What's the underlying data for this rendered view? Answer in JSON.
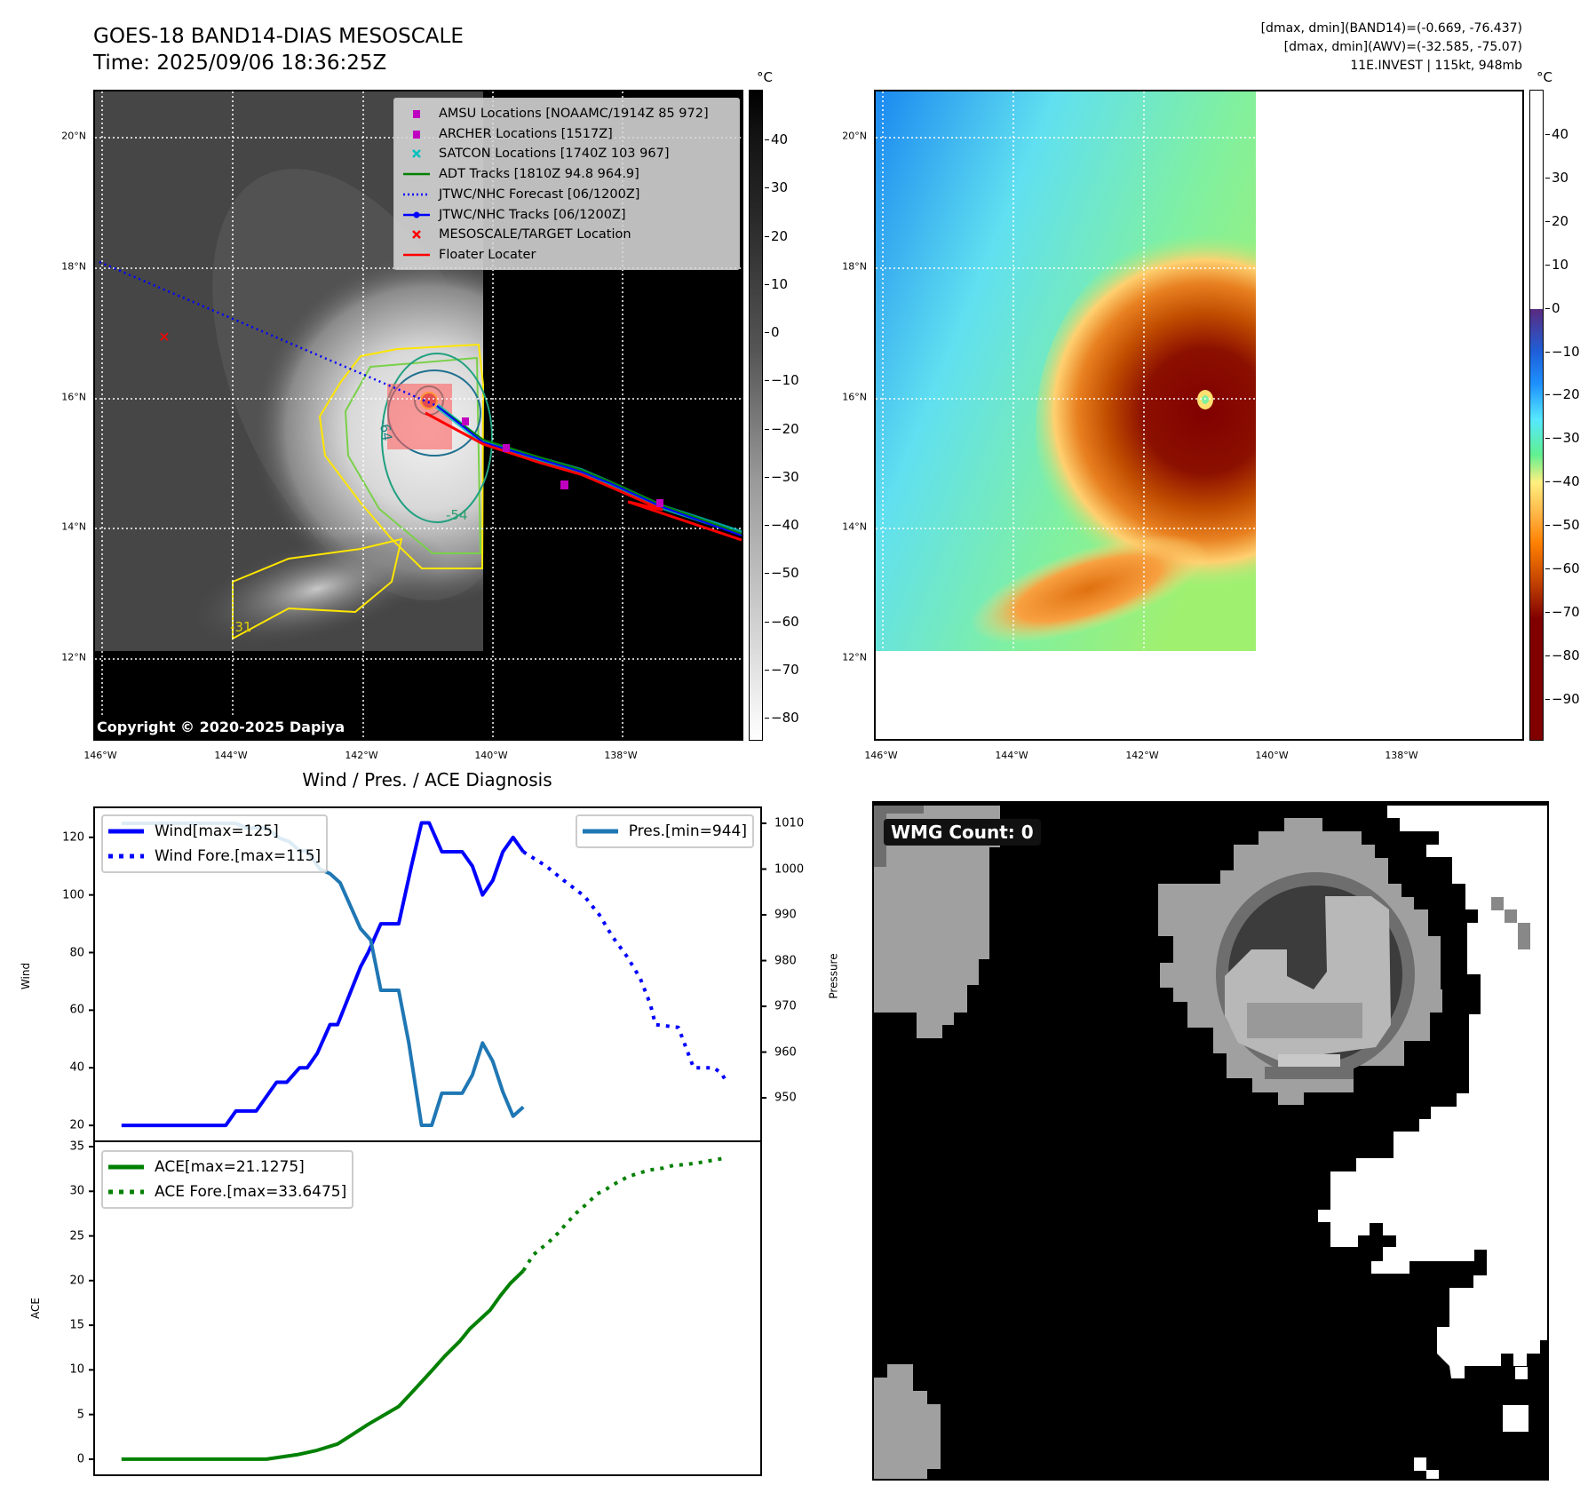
{
  "header": {
    "title": "GOES-18 BAND14-DIAS MESOSCALE",
    "time": "Time: 2025/09/06 18:36:25Z",
    "info_lines": [
      "[dmax, dmin](BAND14)=(-0.669, -76.437)",
      "[dmax, dmin](AWV)=(-32.585, -75.07)",
      "11E.INVEST | 115kt, 948mb"
    ]
  },
  "maps": {
    "lat_labels": [
      "20°N",
      "18°N",
      "16°N",
      "14°N",
      "12°N"
    ],
    "lon_labels": [
      "146°W",
      "144°W",
      "142°W",
      "140°W",
      "138°W"
    ],
    "unit": "°C",
    "ir_colorbar_ticks": [
      "40",
      "30",
      "20",
      "10",
      "0",
      "−10",
      "−20",
      "−30",
      "−40",
      "−50",
      "−60",
      "−70",
      "−80"
    ],
    "awv_colorbar_ticks": [
      "40",
      "30",
      "20",
      "10",
      "0",
      "−10",
      "−20",
      "−30",
      "−40",
      "−50",
      "−60",
      "−70",
      "−80",
      "−90"
    ],
    "contour_labels": [
      "-64",
      "-54",
      "-31"
    ],
    "copyright": "Copyright © 2020-2025 Dapiya",
    "legend": [
      {
        "label": "AMSU Locations [NOAAMC/1914Z 85 972]",
        "symbol": "square",
        "color": "#c000c0"
      },
      {
        "label": "ARCHER Locations [1517Z]",
        "symbol": "square",
        "color": "#c000c0"
      },
      {
        "label": "SATCON Locations [1740Z 103 967]",
        "symbol": "x",
        "color": "#00c0c0"
      },
      {
        "label": "ADT Tracks [1810Z 94.8 964.9]",
        "symbol": "line",
        "color": "#008000"
      },
      {
        "label": "JTWC/NHC Forecast [06/1200Z]",
        "symbol": "dotted",
        "color": "#0000ff"
      },
      {
        "label": "JTWC/NHC Tracks [06/1200Z]",
        "symbol": "line-dot",
        "color": "#0000ff"
      },
      {
        "label": "MESOSCALE/TARGET Location",
        "symbol": "x",
        "color": "#ff0000"
      },
      {
        "label": "Floater Locater",
        "symbol": "line",
        "color": "#ff0000"
      }
    ]
  },
  "wmg": {
    "label": "WMG Count: 0"
  },
  "chart_data": [
    {
      "type": "line",
      "title": "Wind / Pres. / ACE Diagnosis",
      "ylabel": "Wind",
      "y2label": "Pressure",
      "xlim": [
        -5.2,
        125.6
      ],
      "ylim": [
        14.8,
        130.1
      ],
      "y2lim": [
        940.7,
        1013.3
      ],
      "yticks": [
        20,
        40,
        60,
        80,
        100,
        120
      ],
      "y2ticks": [
        950,
        960,
        970,
        980,
        990,
        1000,
        1010
      ],
      "series": [
        {
          "name": "Wind[max=125]",
          "axis": "left",
          "style": "solid",
          "color": "#0000ff",
          "x": [
            0,
            20.5,
            22.5,
            26.5,
            30.5,
            32.5,
            35,
            36.5,
            38.5,
            41,
            42.5,
            47,
            48.5,
            51,
            54.5,
            57,
            59,
            60.5,
            63,
            67,
            69,
            71,
            73,
            75,
            77,
            79
          ],
          "y": [
            20,
            20,
            25,
            25,
            35,
            35,
            40,
            40,
            45,
            55,
            55,
            75,
            80,
            90,
            90,
            110,
            125,
            125,
            115,
            115,
            110,
            100,
            105,
            115,
            120,
            115
          ]
        },
        {
          "name": "Wind Fore.[max=115]",
          "axis": "left",
          "style": "dotted",
          "color": "#0000ff",
          "x": [
            79,
            83.5,
            87,
            91,
            94,
            96.5,
            99.5,
            102,
            104,
            105,
            109.5,
            111,
            112.5,
            116.5,
            118,
            119
          ],
          "y": [
            115,
            110,
            105,
            99.6,
            93,
            85.6,
            78.4,
            71,
            62,
            55,
            54,
            47,
            40,
            40,
            38,
            35
          ]
        },
        {
          "name": "Pres.[min=944]",
          "axis": "right",
          "style": "solid",
          "color": "#1f77b4",
          "x": [
            0,
            22.5,
            24.5,
            28.5,
            31,
            33,
            35,
            36.5,
            39,
            41,
            43,
            47,
            49,
            51,
            54.5,
            56.5,
            59,
            61,
            63,
            67,
            69,
            71,
            73,
            75,
            77,
            79
          ],
          "y": [
            1010,
            1010,
            1009,
            1009,
            1006.8,
            1006,
            1004,
            1004,
            1000,
            999,
            997,
            987,
            984.5,
            973.5,
            973.5,
            962,
            944,
            944,
            951,
            951,
            955,
            962,
            958,
            951.3,
            946,
            948
          ]
        }
      ]
    },
    {
      "type": "line",
      "ylabel": "ACE",
      "xlim": [
        -5.2,
        125.6
      ],
      "ylim": [
        -1.7,
        35.5
      ],
      "yticks": [
        0,
        5,
        10,
        15,
        20,
        25,
        30,
        35
      ],
      "series": [
        {
          "name": "ACE[max=21.1275]",
          "style": "solid",
          "color": "#008000",
          "x": [
            0,
            28.5,
            34.5,
            38.5,
            42.5,
            45.5,
            48.5,
            54.5,
            56.5,
            61,
            63.5,
            66.5,
            68.5,
            72.5,
            74.5,
            76.5,
            79
          ],
          "y": [
            0,
            0,
            0.5,
            1,
            1.7,
            2.8,
            3.9,
            5.9,
            7.1,
            9.9,
            11.5,
            13.2,
            14.6,
            16.7,
            18.3,
            19.7,
            21.1
          ]
        },
        {
          "name": "ACE Fore.[max=33.6475]",
          "style": "dotted",
          "color": "#008000",
          "x": [
            79,
            81,
            84,
            86,
            87.5,
            89.5,
            91.5,
            93.5,
            95.5,
            97.5,
            99.5,
            101.5,
            104,
            106.5,
            108.5,
            111,
            113.5,
            115.5,
            118
          ],
          "y": [
            21.1,
            22.9,
            24.3,
            25.4,
            26.4,
            27.6,
            28.6,
            29.7,
            30.3,
            31.0,
            31.6,
            32.0,
            32.4,
            32.6,
            32.9,
            33.0,
            33.2,
            33.4,
            33.65
          ]
        }
      ]
    }
  ]
}
